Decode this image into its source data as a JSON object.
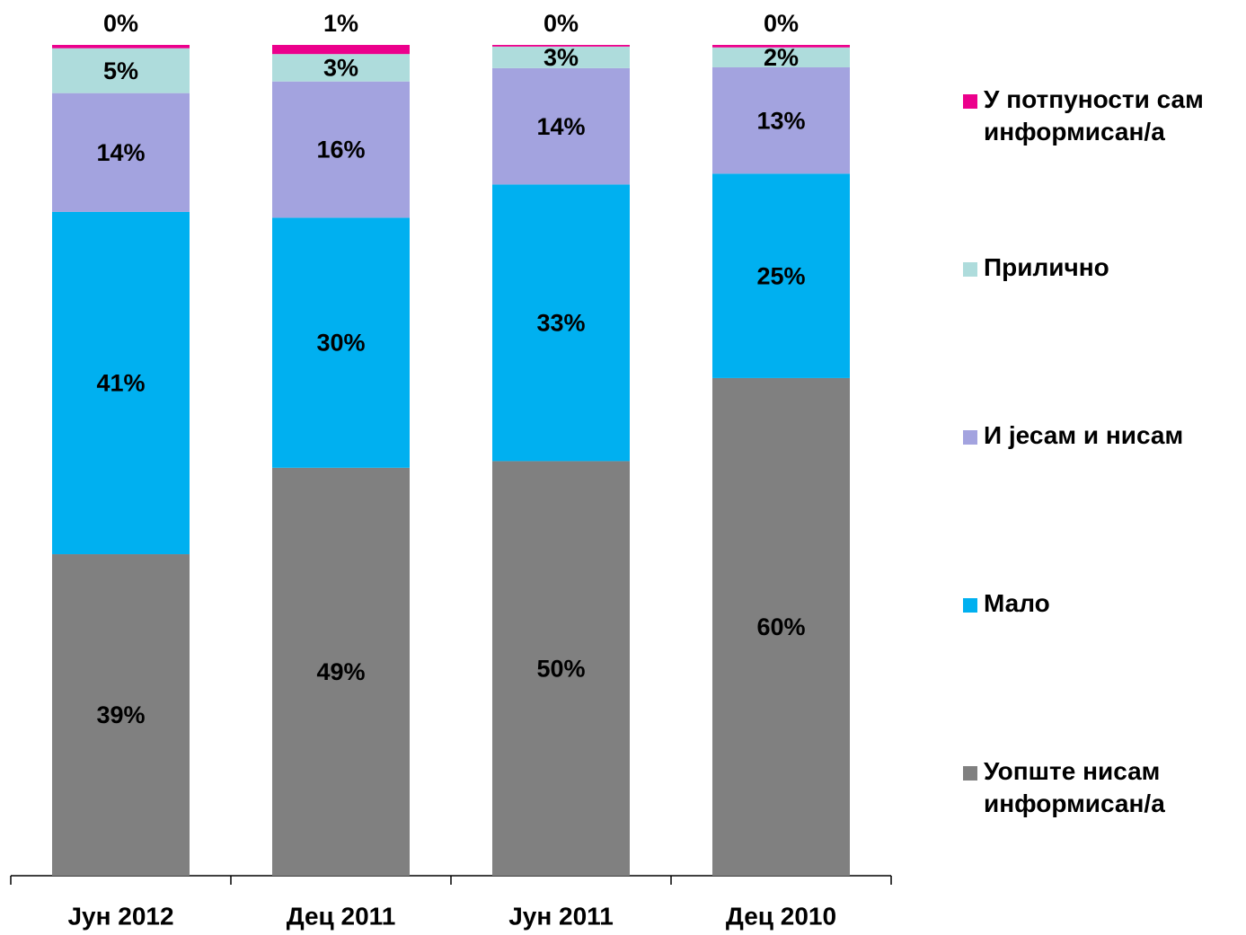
{
  "chart_data": {
    "type": "stacked_bar",
    "categories": [
      "Јун 2012",
      "Дец 2011",
      "Јун 2011",
      "Дец 2010"
    ],
    "ylim": [
      0,
      100
    ],
    "series": [
      {
        "name": "Уопште нисам информисан/а",
        "color": "#808080",
        "values": [
          38.7,
          49.1,
          49.9,
          59.9
        ],
        "value_labels": [
          "39%",
          "49%",
          "50%",
          "60%"
        ]
      },
      {
        "name": "Мало",
        "color": "#00b0f0",
        "values": [
          41.2,
          30.1,
          33.3,
          24.6
        ],
        "value_labels": [
          "41%",
          "30%",
          "33%",
          "25%"
        ]
      },
      {
        "name": "И јесам и нисам",
        "color": "#a3a3df",
        "values": [
          14.3,
          16.4,
          14.0,
          12.8
        ],
        "value_labels": [
          "14%",
          "16%",
          "14%",
          "13%"
        ]
      },
      {
        "name": "Прилично",
        "color": "#aedcdc",
        "values": [
          5.4,
          3.3,
          2.6,
          2.4
        ],
        "value_labels": [
          "5%",
          "3%",
          "3%",
          "2%"
        ]
      },
      {
        "name": "У потпуности сам информисан/а",
        "color": "#ec008c",
        "values": [
          0.4,
          1.1,
          0.2,
          0.3
        ],
        "value_labels": [
          "0%",
          "1%",
          "0%",
          "0%"
        ]
      }
    ]
  }
}
